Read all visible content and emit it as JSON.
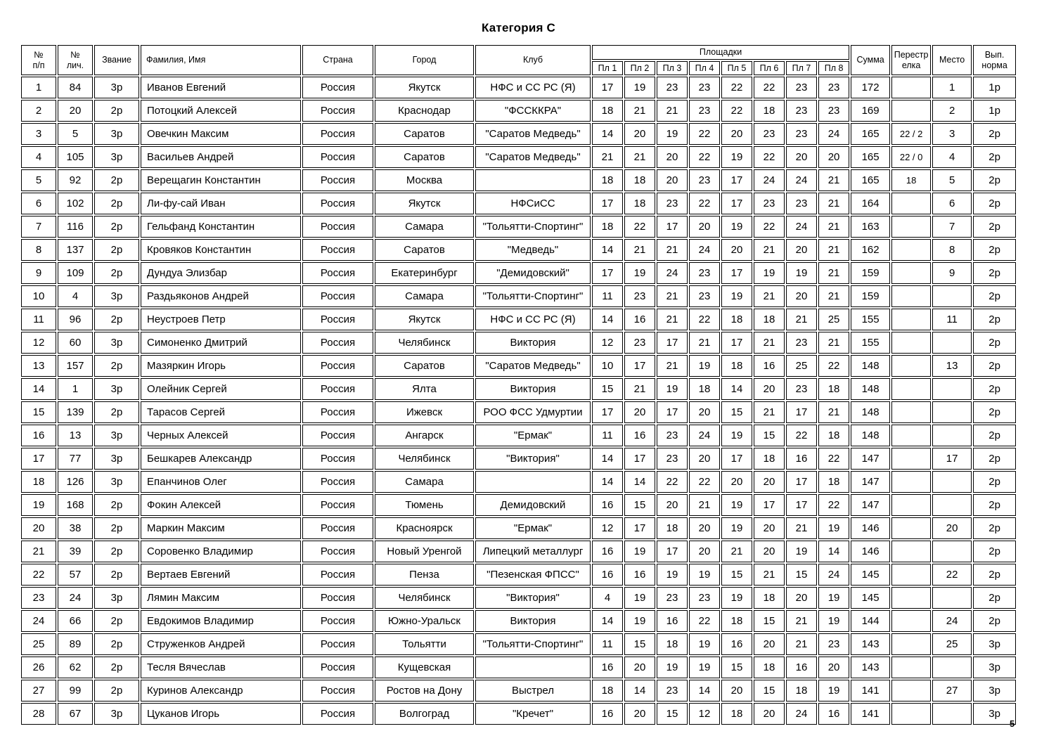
{
  "page": {
    "title": "Категория С",
    "page_number": "5"
  },
  "table": {
    "headers": {
      "num": "№\nп/п",
      "personal": "№\nлич.",
      "rank": "Звание",
      "name": "Фамилия, Имя",
      "country": "Страна",
      "city": "Город",
      "club": "Клуб",
      "platforms_group": "Площадки",
      "platforms": [
        "Пл 1",
        "Пл 2",
        "Пл 3",
        "Пл 4",
        "Пл 5",
        "Пл 6",
        "Пл 7",
        "Пл 8"
      ],
      "sum": "Сумма",
      "shootoff": "Перестр\nелка",
      "place": "Место",
      "norm": "Вып.\nнорма"
    },
    "rows": [
      {
        "n": "1",
        "id": "84",
        "rank": "3р",
        "name": "Иванов Евгений",
        "country": "Россия",
        "city": "Якутск",
        "club": "НФС и СС РС (Я)",
        "scores": [
          "17",
          "19",
          "23",
          "23",
          "22",
          "22",
          "23",
          "23"
        ],
        "sum": "172",
        "shootoff": "",
        "place": "1",
        "norm": "1р"
      },
      {
        "n": "2",
        "id": "20",
        "rank": "2р",
        "name": "Потоцкий Алексей",
        "country": "Россия",
        "city": "Краснодар",
        "club": "\"ФССККРА\"",
        "scores": [
          "18",
          "21",
          "21",
          "23",
          "22",
          "18",
          "23",
          "23"
        ],
        "sum": "169",
        "shootoff": "",
        "place": "2",
        "norm": "1р"
      },
      {
        "n": "3",
        "id": "5",
        "rank": "3р",
        "name": "Овечкин Максим",
        "country": "Россия",
        "city": "Саратов",
        "club": "\"Саратов Медведь\"",
        "scores": [
          "14",
          "20",
          "19",
          "22",
          "20",
          "23",
          "23",
          "24"
        ],
        "sum": "165",
        "shootoff": "22 / 2",
        "place": "3",
        "norm": "2р"
      },
      {
        "n": "4",
        "id": "105",
        "rank": "3р",
        "name": "Васильев Андрей",
        "country": "Россия",
        "city": "Саратов",
        "club": "\"Саратов Медведь\"",
        "scores": [
          "21",
          "21",
          "20",
          "22",
          "19",
          "22",
          "20",
          "20"
        ],
        "sum": "165",
        "shootoff": "22 / 0",
        "place": "4",
        "norm": "2р"
      },
      {
        "n": "5",
        "id": "92",
        "rank": "2р",
        "name": "Верещагин Константин",
        "country": "Россия",
        "city": "Москва",
        "club": "",
        "scores": [
          "18",
          "18",
          "20",
          "23",
          "17",
          "24",
          "24",
          "21"
        ],
        "sum": "165",
        "shootoff": "18",
        "place": "5",
        "norm": "2р"
      },
      {
        "n": "6",
        "id": "102",
        "rank": "2р",
        "name": "Ли-фу-сай Иван",
        "country": "Россия",
        "city": "Якутск",
        "club": "НФСиСС",
        "scores": [
          "17",
          "18",
          "23",
          "22",
          "17",
          "23",
          "23",
          "21"
        ],
        "sum": "164",
        "shootoff": "",
        "place": "6",
        "norm": "2р"
      },
      {
        "n": "7",
        "id": "116",
        "rank": "2р",
        "name": "Гельфанд Константин",
        "country": "Россия",
        "city": "Самара",
        "club": "\"Тольятти-Спортинг\"",
        "scores": [
          "18",
          "22",
          "17",
          "20",
          "19",
          "22",
          "24",
          "21"
        ],
        "sum": "163",
        "shootoff": "",
        "place": "7",
        "norm": "2р"
      },
      {
        "n": "8",
        "id": "137",
        "rank": "2р",
        "name": "Кровяков Константин",
        "country": "Россия",
        "city": "Саратов",
        "club": "\"Медведь\"",
        "scores": [
          "14",
          "21",
          "21",
          "24",
          "20",
          "21",
          "20",
          "21"
        ],
        "sum": "162",
        "shootoff": "",
        "place": "8",
        "norm": "2р"
      },
      {
        "n": "9",
        "id": "109",
        "rank": "2р",
        "name": "Дундуа Элизбар",
        "country": "Россия",
        "city": "Екатеринбург",
        "club": "\"Демидовский\"",
        "scores": [
          "17",
          "19",
          "24",
          "23",
          "17",
          "19",
          "19",
          "21"
        ],
        "sum": "159",
        "shootoff": "",
        "place": "9",
        "norm": "2р"
      },
      {
        "n": "10",
        "id": "4",
        "rank": "3р",
        "name": "Раздьяконов Андрей",
        "country": "Россия",
        "city": "Самара",
        "club": "\"Тольятти-Спортинг\"",
        "scores": [
          "11",
          "23",
          "21",
          "23",
          "19",
          "21",
          "20",
          "21"
        ],
        "sum": "159",
        "shootoff": "",
        "place": "",
        "norm": "2р"
      },
      {
        "n": "11",
        "id": "96",
        "rank": "2р",
        "name": "Неустроев Петр",
        "country": "Россия",
        "city": "Якутск",
        "club": "НФС и СС РС (Я)",
        "scores": [
          "14",
          "16",
          "21",
          "22",
          "18",
          "18",
          "21",
          "25"
        ],
        "sum": "155",
        "shootoff": "",
        "place": "11",
        "norm": "2р"
      },
      {
        "n": "12",
        "id": "60",
        "rank": "3р",
        "name": "Симоненко Дмитрий",
        "country": "Россия",
        "city": "Челябинск",
        "club": "Виктория",
        "scores": [
          "12",
          "23",
          "17",
          "21",
          "17",
          "21",
          "23",
          "21"
        ],
        "sum": "155",
        "shootoff": "",
        "place": "",
        "norm": "2р"
      },
      {
        "n": "13",
        "id": "157",
        "rank": "2р",
        "name": "Мазяркин Игорь",
        "country": "Россия",
        "city": "Саратов",
        "club": "\"Саратов Медведь\"",
        "scores": [
          "10",
          "17",
          "21",
          "19",
          "18",
          "16",
          "25",
          "22"
        ],
        "sum": "148",
        "shootoff": "",
        "place": "13",
        "norm": "2р"
      },
      {
        "n": "14",
        "id": "1",
        "rank": "3р",
        "name": "Олейник Сергей",
        "country": "Россия",
        "city": "Ялта",
        "club": "Виктория",
        "scores": [
          "15",
          "21",
          "19",
          "18",
          "14",
          "20",
          "23",
          "18"
        ],
        "sum": "148",
        "shootoff": "",
        "place": "",
        "norm": "2р"
      },
      {
        "n": "15",
        "id": "139",
        "rank": "2р",
        "name": "Тарасов Сергей",
        "country": "Россия",
        "city": "Ижевск",
        "club": "РОО ФСС Удмуртии",
        "scores": [
          "17",
          "20",
          "17",
          "20",
          "15",
          "21",
          "17",
          "21"
        ],
        "sum": "148",
        "shootoff": "",
        "place": "",
        "norm": "2р"
      },
      {
        "n": "16",
        "id": "13",
        "rank": "3р",
        "name": "Черных Алексей",
        "country": "Россия",
        "city": "Ангарск",
        "club": "\"Ермак\"",
        "scores": [
          "11",
          "16",
          "23",
          "24",
          "19",
          "15",
          "22",
          "18"
        ],
        "sum": "148",
        "shootoff": "",
        "place": "",
        "norm": "2р"
      },
      {
        "n": "17",
        "id": "77",
        "rank": "3р",
        "name": "Бешкарев Александр",
        "country": "Россия",
        "city": "Челябинск",
        "club": "\"Виктория\"",
        "scores": [
          "14",
          "17",
          "23",
          "20",
          "17",
          "18",
          "16",
          "22"
        ],
        "sum": "147",
        "shootoff": "",
        "place": "17",
        "norm": "2р"
      },
      {
        "n": "18",
        "id": "126",
        "rank": "3р",
        "name": "Епанчинов Олег",
        "country": "Россия",
        "city": "Самара",
        "club": "",
        "scores": [
          "14",
          "14",
          "22",
          "22",
          "20",
          "20",
          "17",
          "18"
        ],
        "sum": "147",
        "shootoff": "",
        "place": "",
        "norm": "2р"
      },
      {
        "n": "19",
        "id": "168",
        "rank": "2р",
        "name": "Фокин Алексей",
        "country": "Россия",
        "city": "Тюмень",
        "club": "Демидовский",
        "scores": [
          "16",
          "15",
          "20",
          "21",
          "19",
          "17",
          "17",
          "22"
        ],
        "sum": "147",
        "shootoff": "",
        "place": "",
        "norm": "2р"
      },
      {
        "n": "20",
        "id": "38",
        "rank": "2р",
        "name": "Маркин Максим",
        "country": "Россия",
        "city": "Красноярск",
        "club": "\"Ермак\"",
        "scores": [
          "12",
          "17",
          "18",
          "20",
          "19",
          "20",
          "21",
          "19"
        ],
        "sum": "146",
        "shootoff": "",
        "place": "20",
        "norm": "2р"
      },
      {
        "n": "21",
        "id": "39",
        "rank": "2р",
        "name": "Соровенко Владимир",
        "country": "Россия",
        "city": "Новый Уренгой",
        "club": "Липецкий металлург",
        "scores": [
          "16",
          "19",
          "17",
          "20",
          "21",
          "20",
          "19",
          "14"
        ],
        "sum": "146",
        "shootoff": "",
        "place": "",
        "norm": "2р"
      },
      {
        "n": "22",
        "id": "57",
        "rank": "2р",
        "name": "Вертаев Евгений",
        "country": "Россия",
        "city": "Пенза",
        "club": "\"Пезенская ФПСС\"",
        "scores": [
          "16",
          "16",
          "19",
          "19",
          "15",
          "21",
          "15",
          "24"
        ],
        "sum": "145",
        "shootoff": "",
        "place": "22",
        "norm": "2р"
      },
      {
        "n": "23",
        "id": "24",
        "rank": "3р",
        "name": "Лямин Максим",
        "country": "Россия",
        "city": "Челябинск",
        "club": "\"Виктория\"",
        "scores": [
          "4",
          "19",
          "23",
          "23",
          "19",
          "18",
          "20",
          "19"
        ],
        "sum": "145",
        "shootoff": "",
        "place": "",
        "norm": "2р"
      },
      {
        "n": "24",
        "id": "66",
        "rank": "2р",
        "name": "Евдокимов Владимир",
        "country": "Россия",
        "city": "Южно-Уральск",
        "club": "Виктория",
        "scores": [
          "14",
          "19",
          "16",
          "22",
          "18",
          "15",
          "21",
          "19"
        ],
        "sum": "144",
        "shootoff": "",
        "place": "24",
        "norm": "2р"
      },
      {
        "n": "25",
        "id": "89",
        "rank": "2р",
        "name": "Струженков Андрей",
        "country": "Россия",
        "city": "Тольятти",
        "club": "\"Тольятти-Спортинг\"",
        "scores": [
          "11",
          "15",
          "18",
          "19",
          "16",
          "20",
          "21",
          "23"
        ],
        "sum": "143",
        "shootoff": "",
        "place": "25",
        "norm": "3р"
      },
      {
        "n": "26",
        "id": "62",
        "rank": "2р",
        "name": "Тесля Вячеслав",
        "country": "Россия",
        "city": "Кущевская",
        "club": "",
        "scores": [
          "16",
          "20",
          "19",
          "19",
          "15",
          "18",
          "16",
          "20"
        ],
        "sum": "143",
        "shootoff": "",
        "place": "",
        "norm": "3р"
      },
      {
        "n": "27",
        "id": "99",
        "rank": "2р",
        "name": "Куринов Александр",
        "country": "Россия",
        "city": "Ростов на Дону",
        "club": "Выстрел",
        "scores": [
          "18",
          "14",
          "23",
          "14",
          "20",
          "15",
          "18",
          "19"
        ],
        "sum": "141",
        "shootoff": "",
        "place": "27",
        "norm": "3р"
      },
      {
        "n": "28",
        "id": "67",
        "rank": "3р",
        "name": "Цуканов Игорь",
        "country": "Россия",
        "city": "Волгоград",
        "club": "\"Кречет\"",
        "scores": [
          "16",
          "20",
          "15",
          "12",
          "18",
          "20",
          "24",
          "16"
        ],
        "sum": "141",
        "shootoff": "",
        "place": "",
        "norm": "3р"
      }
    ]
  }
}
